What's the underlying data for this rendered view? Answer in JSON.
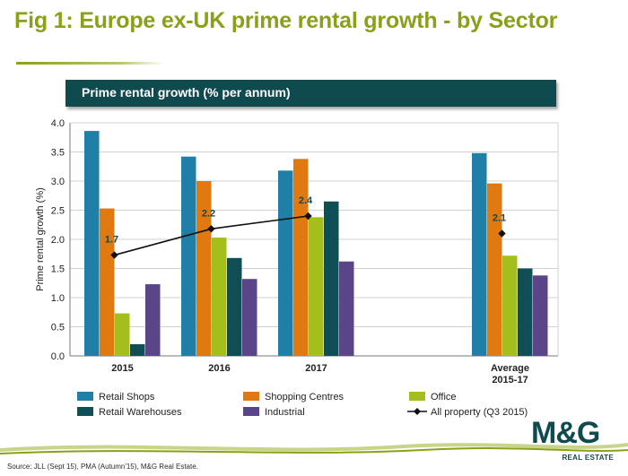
{
  "page": {
    "title": "Fig 1: Europe ex-UK prime rental growth - by Sector",
    "banner": "Prime rental growth (% per annum)",
    "source": "Source: JLL (Sept 15), PMA (Autumn'15), M&G Real Estate.",
    "logo_text": "M&G",
    "logo_subtext": "REAL ESTATE"
  },
  "chart_data": {
    "type": "bar",
    "ylabel": "Prime rental growth (%)",
    "xlabel": "",
    "ylim": [
      0,
      4.0
    ],
    "yticks": [
      "0.0",
      "0.5",
      "1.0",
      "1.5",
      "2.0",
      "2.5",
      "3.0",
      "3.5",
      "4.0"
    ],
    "grid": true,
    "categories": [
      "2015",
      "2016",
      "2017",
      "Average 2015-17"
    ],
    "category_labels": [
      [
        "2015"
      ],
      [
        "2016"
      ],
      [
        "2017"
      ],
      [
        "Average",
        "2015-17"
      ]
    ],
    "series": [
      {
        "name": "Retail Shops",
        "color": "#1f7fa6",
        "values": [
          3.86,
          3.42,
          3.18,
          3.48
        ]
      },
      {
        "name": "Shopping Centres",
        "color": "#e07a10",
        "values": [
          2.53,
          3.0,
          3.38,
          2.96
        ]
      },
      {
        "name": "Office",
        "color": "#a4bf1b",
        "values": [
          0.73,
          2.03,
          2.38,
          1.72
        ]
      },
      {
        "name": "Retail Warehouses",
        "color": "#0f4e55",
        "values": [
          0.2,
          1.68,
          2.65,
          1.5
        ]
      },
      {
        "name": "Industrial",
        "color": "#5a4588",
        "values": [
          1.23,
          1.32,
          1.62,
          1.38
        ]
      }
    ],
    "line_series": {
      "name": "All property (Q3 2015)",
      "color": "#111111",
      "values": [
        1.73,
        2.18,
        2.4,
        2.1
      ],
      "labels": [
        "1.7",
        "2.2",
        "2.4",
        "2.1"
      ],
      "connected": [
        true,
        true,
        true,
        false
      ]
    },
    "legend_position": "bottom"
  }
}
